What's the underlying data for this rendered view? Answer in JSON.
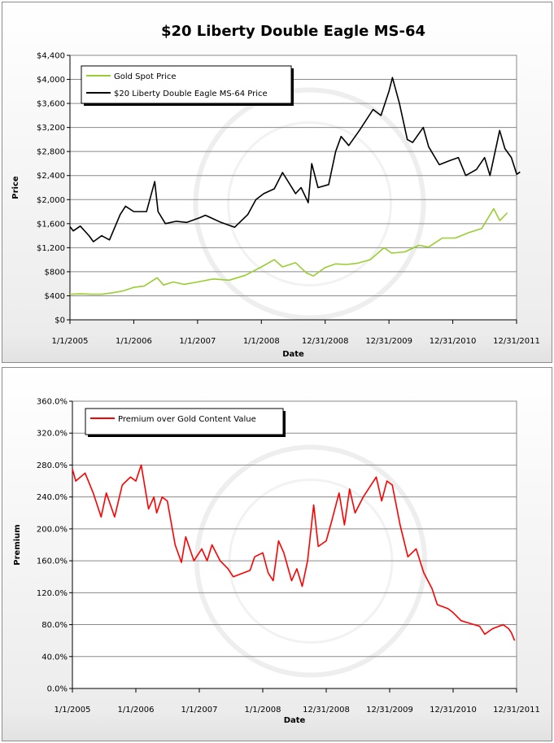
{
  "chart_data": [
    {
      "type": "line",
      "title": "$20 Liberty Double Eagle MS-64",
      "xlabel": "Date",
      "ylabel": "Price",
      "x_ticks": [
        "1/1/2005",
        "1/1/2006",
        "1/1/2007",
        "1/1/2008",
        "12/31/2008",
        "12/31/2009",
        "12/31/2010",
        "12/31/2011"
      ],
      "y_ticks": [
        "$0",
        "$400",
        "$800",
        "$1,200",
        "$1,600",
        "$2,000",
        "$2,400",
        "$2,800",
        "$3,200",
        "$3,600",
        "$4,000",
        "$4,400"
      ],
      "ylim": [
        0,
        4400
      ],
      "xlim": [
        "2005-01-01",
        "2011-12-31"
      ],
      "grid": "horizontal",
      "legend_position": "top-left",
      "series": [
        {
          "name": "Gold Spot Price",
          "color": "#9acd32",
          "points": [
            [
              "2005-01-01",
              425
            ],
            [
              "2005-03-01",
              432
            ],
            [
              "2005-05-01",
              425
            ],
            [
              "2005-07-01",
              425
            ],
            [
              "2005-09-01",
              450
            ],
            [
              "2005-11-01",
              480
            ],
            [
              "2006-01-01",
              540
            ],
            [
              "2006-03-01",
              560
            ],
            [
              "2006-05-15",
              700
            ],
            [
              "2006-06-20",
              580
            ],
            [
              "2006-08-15",
              630
            ],
            [
              "2006-10-15",
              590
            ],
            [
              "2007-01-01",
              630
            ],
            [
              "2007-04-01",
              680
            ],
            [
              "2007-07-01",
              660
            ],
            [
              "2007-10-01",
              740
            ],
            [
              "2008-01-01",
              880
            ],
            [
              "2008-03-15",
              1000
            ],
            [
              "2008-05-01",
              880
            ],
            [
              "2008-07-15",
              950
            ],
            [
              "2008-09-15",
              780
            ],
            [
              "2008-10-25",
              730
            ],
            [
              "2008-12-31",
              870
            ],
            [
              "2009-03-01",
              930
            ],
            [
              "2009-05-01",
              920
            ],
            [
              "2009-07-01",
              940
            ],
            [
              "2009-09-15",
              1000
            ],
            [
              "2009-12-03",
              1200
            ],
            [
              "2010-01-15",
              1110
            ],
            [
              "2010-04-01",
              1130
            ],
            [
              "2010-06-20",
              1240
            ],
            [
              "2010-08-15",
              1210
            ],
            [
              "2010-11-01",
              1360
            ],
            [
              "2011-01-15",
              1360
            ],
            [
              "2011-04-01",
              1450
            ],
            [
              "2011-06-15",
              1520
            ],
            [
              "2011-08-22",
              1850
            ],
            [
              "2011-09-26",
              1650
            ],
            [
              "2011-11-08",
              1780
            ]
          ]
        },
        {
          "name": "$20 Liberty Double Eagle MS-64 Price",
          "color": "#000000",
          "points": [
            [
              "2005-01-01",
              1550
            ],
            [
              "2005-01-20",
              1480
            ],
            [
              "2005-03-01",
              1560
            ],
            [
              "2005-04-20",
              1400
            ],
            [
              "2005-05-15",
              1300
            ],
            [
              "2005-07-01",
              1400
            ],
            [
              "2005-08-15",
              1330
            ],
            [
              "2005-10-15",
              1750
            ],
            [
              "2005-11-15",
              1890
            ],
            [
              "2006-01-01",
              1800
            ],
            [
              "2006-03-15",
              1800
            ],
            [
              "2006-05-01",
              2300
            ],
            [
              "2006-05-20",
              1800
            ],
            [
              "2006-07-01",
              1600
            ],
            [
              "2006-09-01",
              1640
            ],
            [
              "2006-11-01",
              1620
            ],
            [
              "2007-01-15",
              1700
            ],
            [
              "2007-02-15",
              1740
            ],
            [
              "2007-05-15",
              1620
            ],
            [
              "2007-08-01",
              1540
            ],
            [
              "2007-10-15",
              1750
            ],
            [
              "2007-12-01",
              2000
            ],
            [
              "2008-01-15",
              2100
            ],
            [
              "2008-03-15",
              2180
            ],
            [
              "2008-05-01",
              2450
            ],
            [
              "2008-07-15",
              2100
            ],
            [
              "2008-08-15",
              2200
            ],
            [
              "2008-09-25",
              1950
            ],
            [
              "2008-10-15",
              2600
            ],
            [
              "2008-11-20",
              2200
            ],
            [
              "2009-01-20",
              2250
            ],
            [
              "2009-03-01",
              2800
            ],
            [
              "2009-04-01",
              3050
            ],
            [
              "2009-05-15",
              2900
            ],
            [
              "2009-07-15",
              3150
            ],
            [
              "2009-10-01",
              3500
            ],
            [
              "2009-11-15",
              3400
            ],
            [
              "2009-12-31",
              3800
            ],
            [
              "2010-01-20",
              4030
            ],
            [
              "2010-03-01",
              3600
            ],
            [
              "2010-04-15",
              3000
            ],
            [
              "2010-05-15",
              2950
            ],
            [
              "2010-07-15",
              3200
            ],
            [
              "2010-08-15",
              2880
            ],
            [
              "2010-10-15",
              2580
            ],
            [
              "2010-12-15",
              2650
            ],
            [
              "2011-02-01",
              2700
            ],
            [
              "2011-03-15",
              2400
            ],
            [
              "2011-05-15",
              2500
            ],
            [
              "2011-07-01",
              2700
            ],
            [
              "2011-08-01",
              2400
            ],
            [
              "2011-09-25",
              3150
            ],
            [
              "2011-10-25",
              2850
            ],
            [
              "2011-12-01",
              2700
            ],
            [
              "2012-01-01",
              2420
            ],
            [
              "2012-01-20",
              2460
            ]
          ]
        }
      ]
    },
    {
      "type": "line",
      "title": "",
      "xlabel": "Date",
      "ylabel": "Premium",
      "x_ticks": [
        "1/1/2005",
        "1/1/2006",
        "1/1/2007",
        "1/1/2008",
        "12/31/2008",
        "12/31/2009",
        "12/31/2010",
        "12/31/2011"
      ],
      "y_ticks": [
        "0.0%",
        "40.0%",
        "80.0%",
        "120.0%",
        "160.0%",
        "200.0%",
        "240.0%",
        "280.0%",
        "320.0%",
        "360.0%"
      ],
      "ylim": [
        0,
        360
      ],
      "xlim": [
        "2005-01-01",
        "2011-12-31"
      ],
      "grid": "horizontal",
      "legend_position": "top-left",
      "series": [
        {
          "name": "Premium over Gold Content Value",
          "color": "#ff0000",
          "points": [
            [
              "2005-01-01",
              275
            ],
            [
              "2005-01-20",
              260
            ],
            [
              "2005-03-15",
              270
            ],
            [
              "2005-05-01",
              245
            ],
            [
              "2005-06-15",
              215
            ],
            [
              "2005-07-15",
              245
            ],
            [
              "2005-09-01",
              215
            ],
            [
              "2005-10-15",
              255
            ],
            [
              "2005-12-01",
              265
            ],
            [
              "2006-01-01",
              260
            ],
            [
              "2006-02-01",
              280
            ],
            [
              "2006-03-15",
              225
            ],
            [
              "2006-04-15",
              240
            ],
            [
              "2006-05-01",
              220
            ],
            [
              "2006-06-01",
              240
            ],
            [
              "2006-07-01",
              235
            ],
            [
              "2006-08-15",
              180
            ],
            [
              "2006-09-20",
              158
            ],
            [
              "2006-10-15",
              190
            ],
            [
              "2006-12-01",
              160
            ],
            [
              "2007-01-15",
              175
            ],
            [
              "2007-02-15",
              160
            ],
            [
              "2007-03-15",
              180
            ],
            [
              "2007-05-01",
              160
            ],
            [
              "2007-06-15",
              150
            ],
            [
              "2007-07-15",
              140
            ],
            [
              "2007-09-15",
              145
            ],
            [
              "2007-10-20",
              148
            ],
            [
              "2007-11-15",
              165
            ],
            [
              "2008-01-01",
              170
            ],
            [
              "2008-02-01",
              145
            ],
            [
              "2008-03-01",
              135
            ],
            [
              "2008-04-01",
              185
            ],
            [
              "2008-05-01",
              170
            ],
            [
              "2008-06-15",
              135
            ],
            [
              "2008-07-15",
              150
            ],
            [
              "2008-08-15",
              128
            ],
            [
              "2008-09-15",
              160
            ],
            [
              "2008-10-20",
              230
            ],
            [
              "2008-11-15",
              178
            ],
            [
              "2008-12-31",
              185
            ],
            [
              "2009-02-01",
              210
            ],
            [
              "2009-03-15",
              245
            ],
            [
              "2009-04-15",
              205
            ],
            [
              "2009-05-15",
              250
            ],
            [
              "2009-06-15",
              220
            ],
            [
              "2009-08-01",
              240
            ],
            [
              "2009-10-15",
              265
            ],
            [
              "2009-11-15",
              235
            ],
            [
              "2009-12-15",
              260
            ],
            [
              "2010-01-15",
              255
            ],
            [
              "2010-03-01",
              205
            ],
            [
              "2010-04-15",
              165
            ],
            [
              "2010-06-01",
              175
            ],
            [
              "2010-07-15",
              145
            ],
            [
              "2010-09-01",
              125
            ],
            [
              "2010-10-01",
              105
            ],
            [
              "2010-12-01",
              100
            ],
            [
              "2010-12-31",
              95
            ],
            [
              "2011-02-15",
              85
            ],
            [
              "2011-04-01",
              82
            ],
            [
              "2011-06-01",
              78
            ],
            [
              "2011-07-01",
              68
            ],
            [
              "2011-08-15",
              75
            ],
            [
              "2011-10-15",
              80
            ],
            [
              "2011-11-15",
              75
            ],
            [
              "2011-12-01",
              70
            ],
            [
              "2011-12-20",
              60
            ]
          ]
        }
      ]
    }
  ]
}
